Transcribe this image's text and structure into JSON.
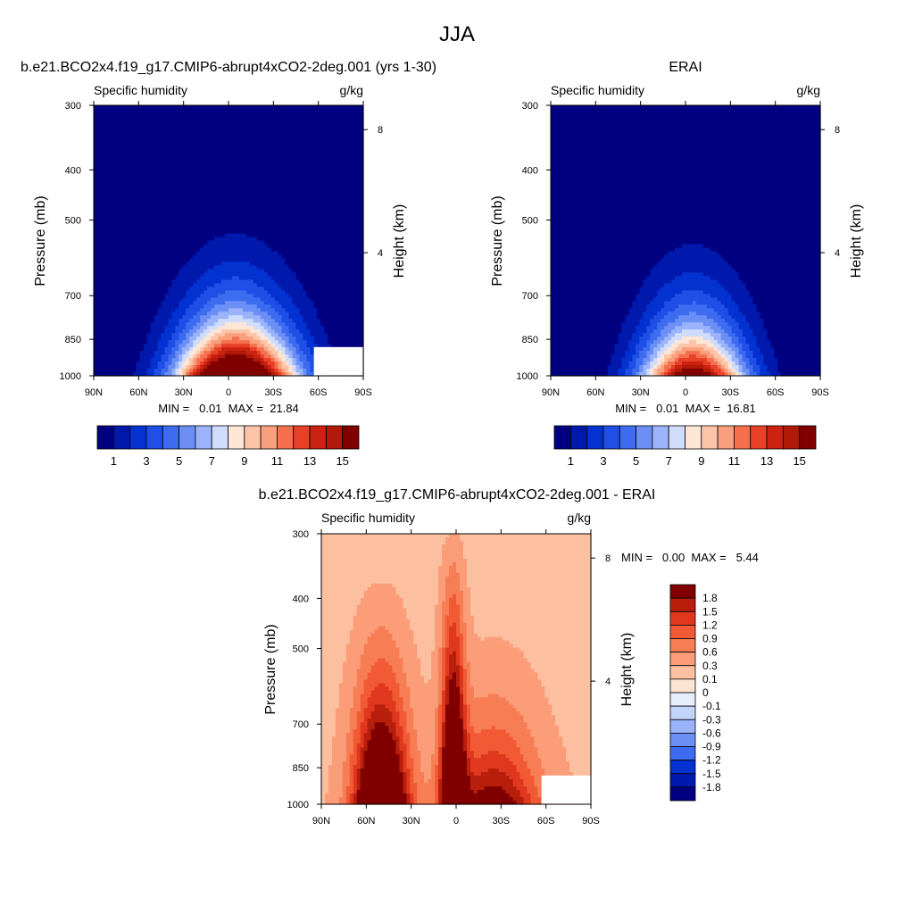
{
  "page_title": "JJA",
  "chart_data": [
    {
      "type": "contour",
      "title": "b.e21.BCO2x4.f19_g17.CMIP6-abrupt4xCO2-2deg.001 (yrs 1-30)",
      "left_label": "Specific humidity",
      "right_label": "g/kg",
      "ylabel": "Pressure (mb)",
      "ylabel_right": "Height (km)",
      "y_ticks": [
        "300",
        "400",
        "500",
        "700",
        "850",
        "1000"
      ],
      "y_tick_values": [
        300,
        400,
        500,
        700,
        850,
        1000
      ],
      "x_ticks": [
        "90N",
        "60N",
        "30N",
        "0",
        "30S",
        "60S",
        "90S"
      ],
      "x_tick_values": [
        90,
        60,
        30,
        0,
        -30,
        -60,
        -90
      ],
      "height_ticks": [
        "8",
        "4"
      ],
      "height_tick_values": [
        8,
        4
      ],
      "stats": "MIN =   0.01  MAX =  21.84",
      "min": 0.01,
      "max": 21.84,
      "peak_lat": -5,
      "peak_width": 40,
      "top_moisture": 4,
      "colorbar_labels": [
        "1",
        "3",
        "5",
        "7",
        "9",
        "11",
        "13",
        "15"
      ],
      "colorbar_colors": [
        "#000080",
        "#0019ad",
        "#0332d1",
        "#1f4fe6",
        "#3d6cf0",
        "#6b8ff5",
        "#9ab3fa",
        "#cfdcfc",
        "#fee6d7",
        "#fdc4a8",
        "#fba07e",
        "#f5704e",
        "#e84128",
        "#cc2212",
        "#b01a08",
        "#800000"
      ]
    },
    {
      "type": "contour",
      "title": "ERAI",
      "left_label": "Specific humidity",
      "right_label": "g/kg",
      "ylabel": "Pressure (mb)",
      "ylabel_right": "Height (km)",
      "y_ticks": [
        "300",
        "400",
        "500",
        "700",
        "850",
        "1000"
      ],
      "y_tick_values": [
        300,
        400,
        500,
        700,
        850,
        1000
      ],
      "x_ticks": [
        "90N",
        "60N",
        "30N",
        "0",
        "30S",
        "60S",
        "90S"
      ],
      "x_tick_values": [
        90,
        60,
        30,
        0,
        -30,
        -60,
        -90
      ],
      "height_ticks": [
        "8",
        "4"
      ],
      "height_tick_values": [
        8,
        4
      ],
      "stats": "MIN =   0.01  MAX =  16.81",
      "min": 0.01,
      "max": 16.81,
      "peak_lat": -5,
      "peak_width": 35,
      "top_moisture": 2.5,
      "colorbar_labels": [
        "1",
        "3",
        "5",
        "7",
        "9",
        "11",
        "13",
        "15"
      ],
      "colorbar_colors": [
        "#000080",
        "#0019ad",
        "#0332d1",
        "#1f4fe6",
        "#3d6cf0",
        "#6b8ff5",
        "#9ab3fa",
        "#cfdcfc",
        "#fee6d7",
        "#fdc4a8",
        "#fba07e",
        "#f5704e",
        "#e84128",
        "#cc2212",
        "#b01a08",
        "#800000"
      ]
    },
    {
      "type": "contour",
      "title": "b.e21.BCO2x4.f19_g17.CMIP6-abrupt4xCO2-2deg.001 - ERAI",
      "left_label": "Specific humidity",
      "right_label": "g/kg",
      "ylabel": "Pressure (mb)",
      "ylabel_right": "Height (km)",
      "y_ticks": [
        "300",
        "400",
        "500",
        "700",
        "850",
        "1000"
      ],
      "y_tick_values": [
        300,
        400,
        500,
        700,
        850,
        1000
      ],
      "x_ticks": [
        "90N",
        "60N",
        "30N",
        "0",
        "30S",
        "60S",
        "90S"
      ],
      "x_tick_values": [
        90,
        60,
        30,
        0,
        -30,
        -60,
        -90
      ],
      "height_ticks": [
        "8",
        "4"
      ],
      "height_tick_values": [
        8,
        4
      ],
      "stats": "MIN =   0.00  MAX =   5.44",
      "min": 0.0,
      "max": 5.44,
      "colorbar_labels": [
        "1.8",
        "1.5",
        "1.2",
        "0.9",
        "0.6",
        "0.3",
        "0.1",
        "0",
        "-0.1",
        "-0.3",
        "-0.6",
        "-0.9",
        "-1.2",
        "-1.5",
        "-1.8"
      ],
      "colorbar_colors": [
        "#800000",
        "#b81e0c",
        "#e0381e",
        "#f25a35",
        "#f77d55",
        "#fa9d78",
        "#fcc0a0",
        "#fde3d2",
        "#e6eefc",
        "#c3d4fa",
        "#9ab3fa",
        "#6b8ff5",
        "#3d6cf0",
        "#0332d1",
        "#0019ad",
        "#000080"
      ]
    }
  ]
}
